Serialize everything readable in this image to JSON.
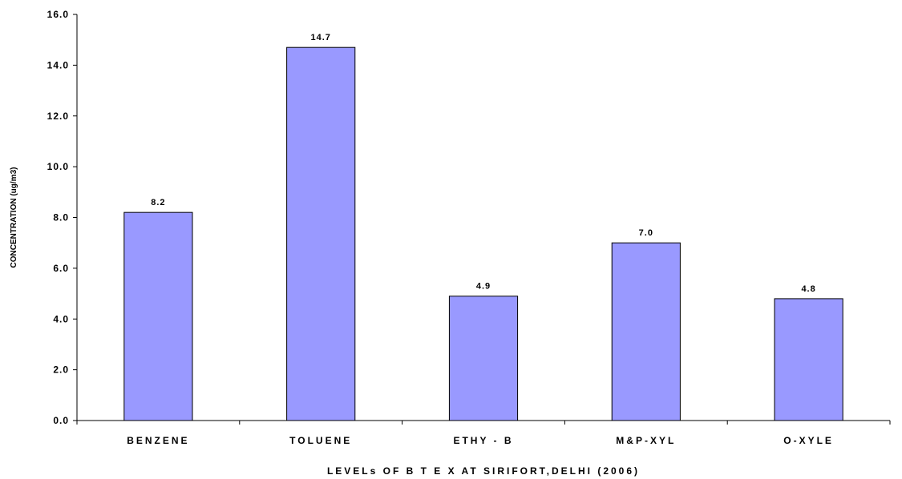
{
  "chart_data": {
    "type": "bar",
    "categories": [
      "BENZENE",
      "TOLUENE",
      "ETHY - B",
      "M&P-XYL",
      "O-XYLE"
    ],
    "values": [
      8.2,
      14.7,
      4.9,
      7.0,
      4.8
    ],
    "data_labels": [
      "8.2",
      "14.7",
      "4.9",
      "7.0",
      "4.8"
    ],
    "xlabel": "LEVELs OF  B T E X  AT SIRIFORT,DELHI (2006)",
    "ylabel": "CONCENTRATION (ug/m3)",
    "ylim": [
      0,
      16
    ],
    "yticks": [
      0,
      2,
      4,
      6,
      8,
      10,
      12,
      14,
      16
    ],
    "ytick_labels": [
      "0.0",
      "2.0",
      "4.0",
      "6.0",
      "8.0",
      "10.0",
      "12.0",
      "14.0",
      "16.0"
    ],
    "grid": false,
    "legend": "none",
    "colors": {
      "bar_fill": "#9999ff",
      "bar_stroke": "#000000",
      "axis": "#000000"
    }
  }
}
